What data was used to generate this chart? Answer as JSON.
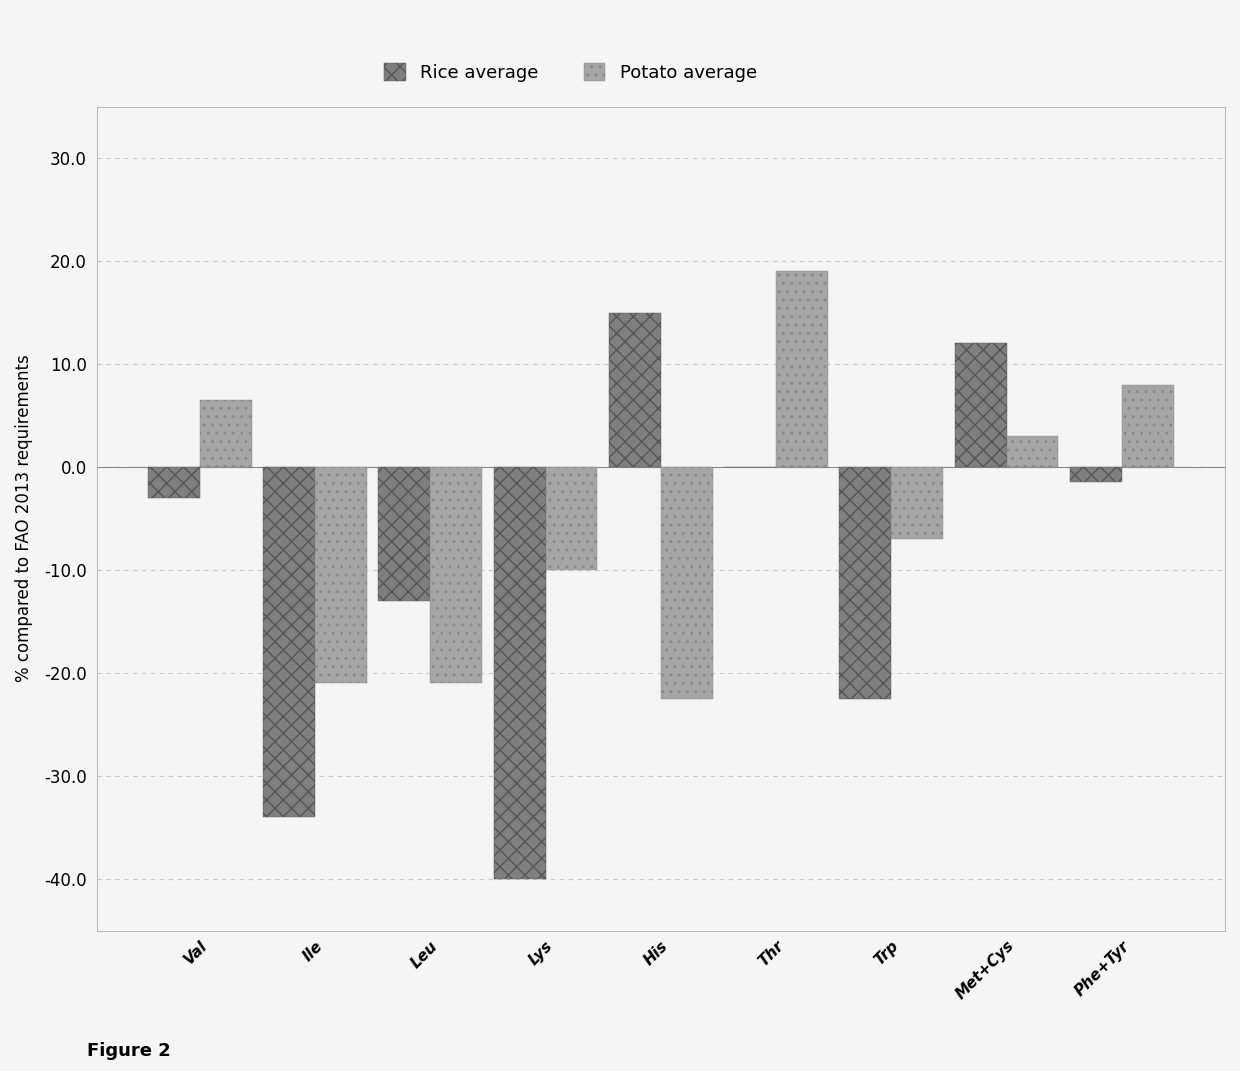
{
  "categories": [
    "Val",
    "Ile",
    "Leu",
    "Lys",
    "His",
    "Thr",
    "Trp",
    "Met+Cys",
    "Phe+Tyr"
  ],
  "rice": [
    -3.0,
    -34.0,
    -13.0,
    -40.0,
    15.0,
    0.0,
    -22.5,
    12.0,
    -1.5
  ],
  "potato": [
    6.5,
    -21.0,
    -21.0,
    -10.0,
    -22.5,
    19.0,
    -7.0,
    3.0,
    8.0
  ],
  "rice_color": "#7f7f7f",
  "potato_color": "#a5a5a5",
  "ylabel": "% compared to FAO 2013 requirements",
  "ylim": [
    -45,
    35
  ],
  "yticks": [
    -40.0,
    -30.0,
    -20.0,
    -10.0,
    0.0,
    10.0,
    20.0,
    30.0
  ],
  "legend_rice": "Rice average",
  "legend_potato": "Potato average",
  "figure_label": "Figure 2",
  "bar_width": 0.45,
  "background_color": "#f5f5f5",
  "grid_color": "#c8c8c8",
  "rice_hatch": "xx",
  "potato_hatch": ".."
}
